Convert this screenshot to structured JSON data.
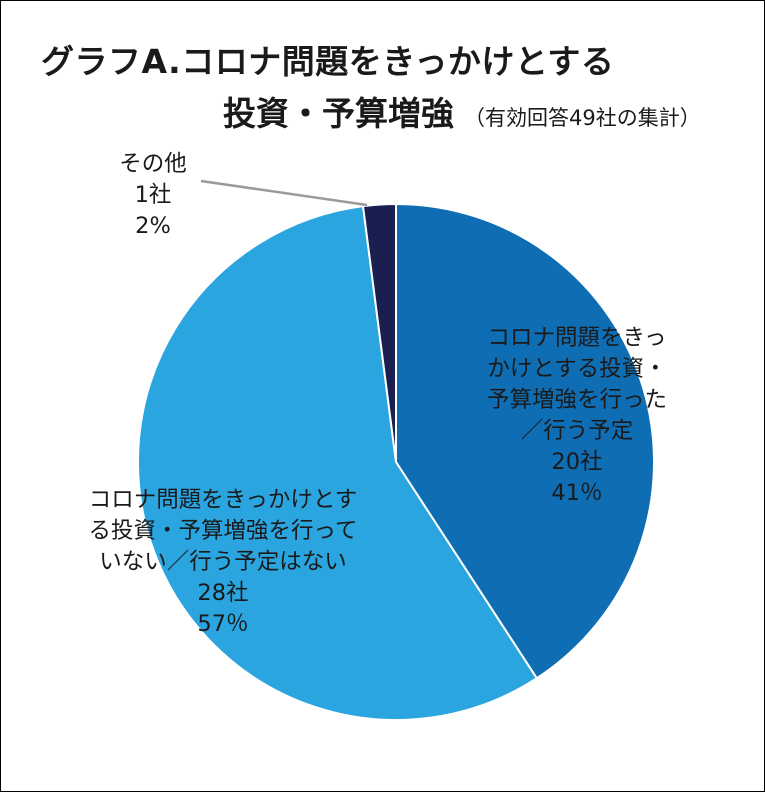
{
  "title": {
    "line1": "グラフA.コロナ問題をきっかけとする",
    "line2_main": "投資・予算増強",
    "line2_sub": "（有効回答49社の集計）"
  },
  "chart_data": {
    "type": "pie",
    "title": "グラフA.コロナ問題をきっかけとする 投資・予算増強（有効回答49社の集計）",
    "start": "12 o'clock",
    "direction": "clockwise",
    "slices": [
      {
        "label_lines": [
          "コロナ問題をきっ",
          "かけとする投資・",
          "予算増強を行った",
          "／行う予定"
        ],
        "count": "20社",
        "percent_label": "41％",
        "value": 20,
        "color": "#0f6db3"
      },
      {
        "label_lines": [
          "コロナ問題をきっかけとす",
          "る投資・予算増強を行って",
          "いない／行う予定はない"
        ],
        "count": "28社",
        "percent_label": "57％",
        "value": 28,
        "color": "#2aa5e0"
      },
      {
        "label_lines": [
          "その他"
        ],
        "count": "1社",
        "percent_label": "2%",
        "value": 1,
        "color": "#1b1f4f"
      }
    ]
  }
}
